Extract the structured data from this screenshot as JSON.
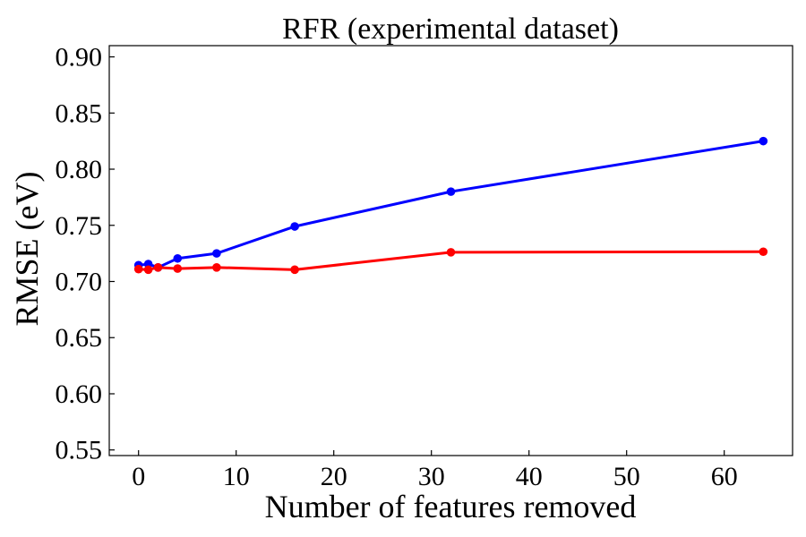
{
  "chart_data": {
    "type": "line",
    "title": "RFR (experimental dataset)",
    "xlabel": "Number of features removed",
    "ylabel": "RMSE (eV)",
    "xlim": [
      -3,
      67
    ],
    "ylim": [
      0.545,
      0.91
    ],
    "xticks": [
      0,
      10,
      20,
      30,
      40,
      50,
      60
    ],
    "yticks": [
      0.55,
      0.6,
      0.65,
      0.7,
      0.75,
      0.8,
      0.85,
      0.9
    ],
    "grid": false,
    "legend": "none",
    "series": [
      {
        "color": "#0000ff",
        "x": [
          0,
          1,
          2,
          4,
          8,
          16,
          32,
          64
        ],
        "y": [
          0.7145,
          0.7155,
          0.7125,
          0.7205,
          0.725,
          0.749,
          0.78,
          0.825
        ]
      },
      {
        "color": "#ff0000",
        "x": [
          0,
          1,
          2,
          4,
          8,
          16,
          32,
          64
        ],
        "y": [
          0.711,
          0.7105,
          0.7125,
          0.7115,
          0.7125,
          0.7105,
          0.726,
          0.7265
        ]
      }
    ]
  }
}
